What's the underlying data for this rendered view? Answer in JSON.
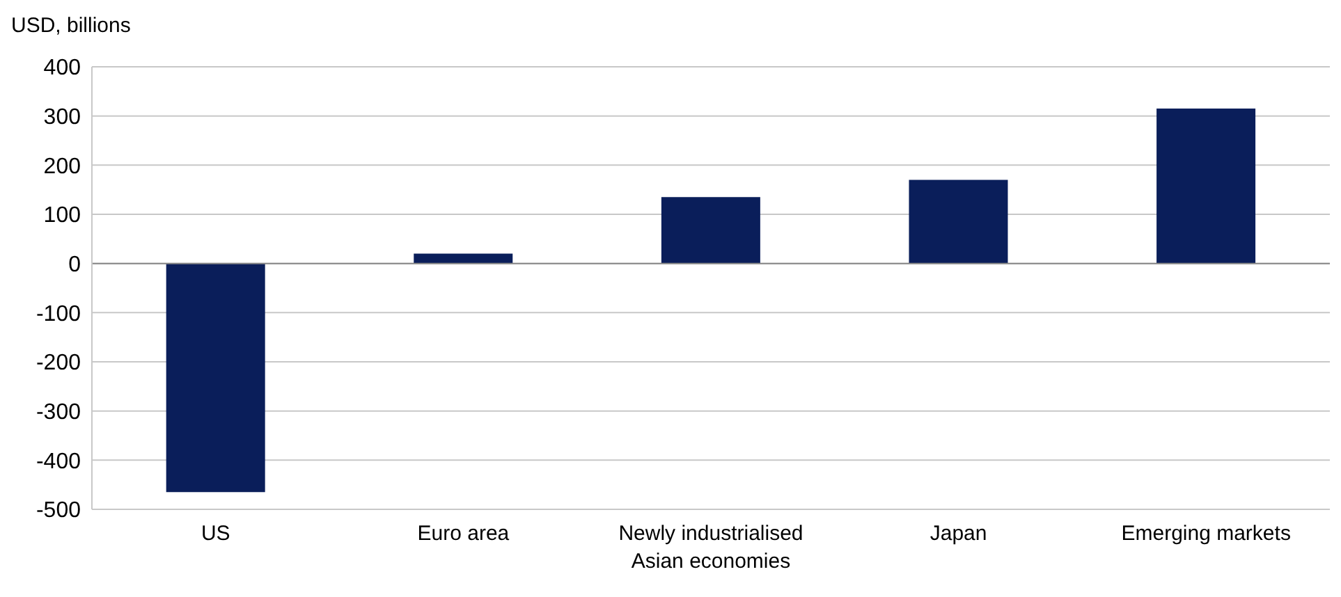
{
  "chart_data": {
    "type": "bar",
    "ylabel": "USD, billions",
    "categories": [
      "US",
      "Euro area",
      "Newly industrialised Asian economies",
      "Japan",
      "Emerging markets"
    ],
    "values": [
      -465,
      20,
      135,
      170,
      315
    ],
    "color": "#0a1e5a",
    "ylim": [
      -500,
      400
    ],
    "yticks": [
      -500,
      -400,
      -300,
      -200,
      -100,
      0,
      100,
      200,
      300,
      400
    ],
    "grid": "y"
  }
}
